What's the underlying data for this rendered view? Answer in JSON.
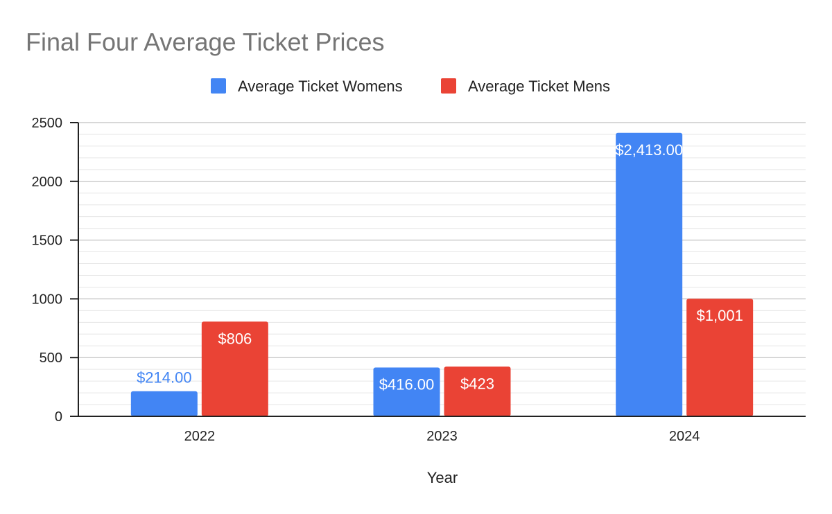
{
  "chart_data": {
    "type": "bar",
    "title": "Final Four Average Ticket Prices",
    "xlabel": "Year",
    "ylabel": "",
    "categories": [
      "2022",
      "2023",
      "2024"
    ],
    "ylim": [
      0,
      2500
    ],
    "yticks": [
      0,
      500,
      1000,
      1500,
      2000,
      2500
    ],
    "grid": true,
    "legend_position": "top",
    "series": [
      {
        "name": "Average Ticket Womens",
        "color": "#4285f4",
        "values": [
          214,
          416,
          2413
        ],
        "labels": [
          "$214.00",
          "$416.00",
          "$2,413.00"
        ]
      },
      {
        "name": "Average Ticket Mens",
        "color": "#ea4335",
        "values": [
          806,
          423,
          1001
        ],
        "labels": [
          "$806",
          "$423",
          "$1,001"
        ]
      }
    ]
  }
}
